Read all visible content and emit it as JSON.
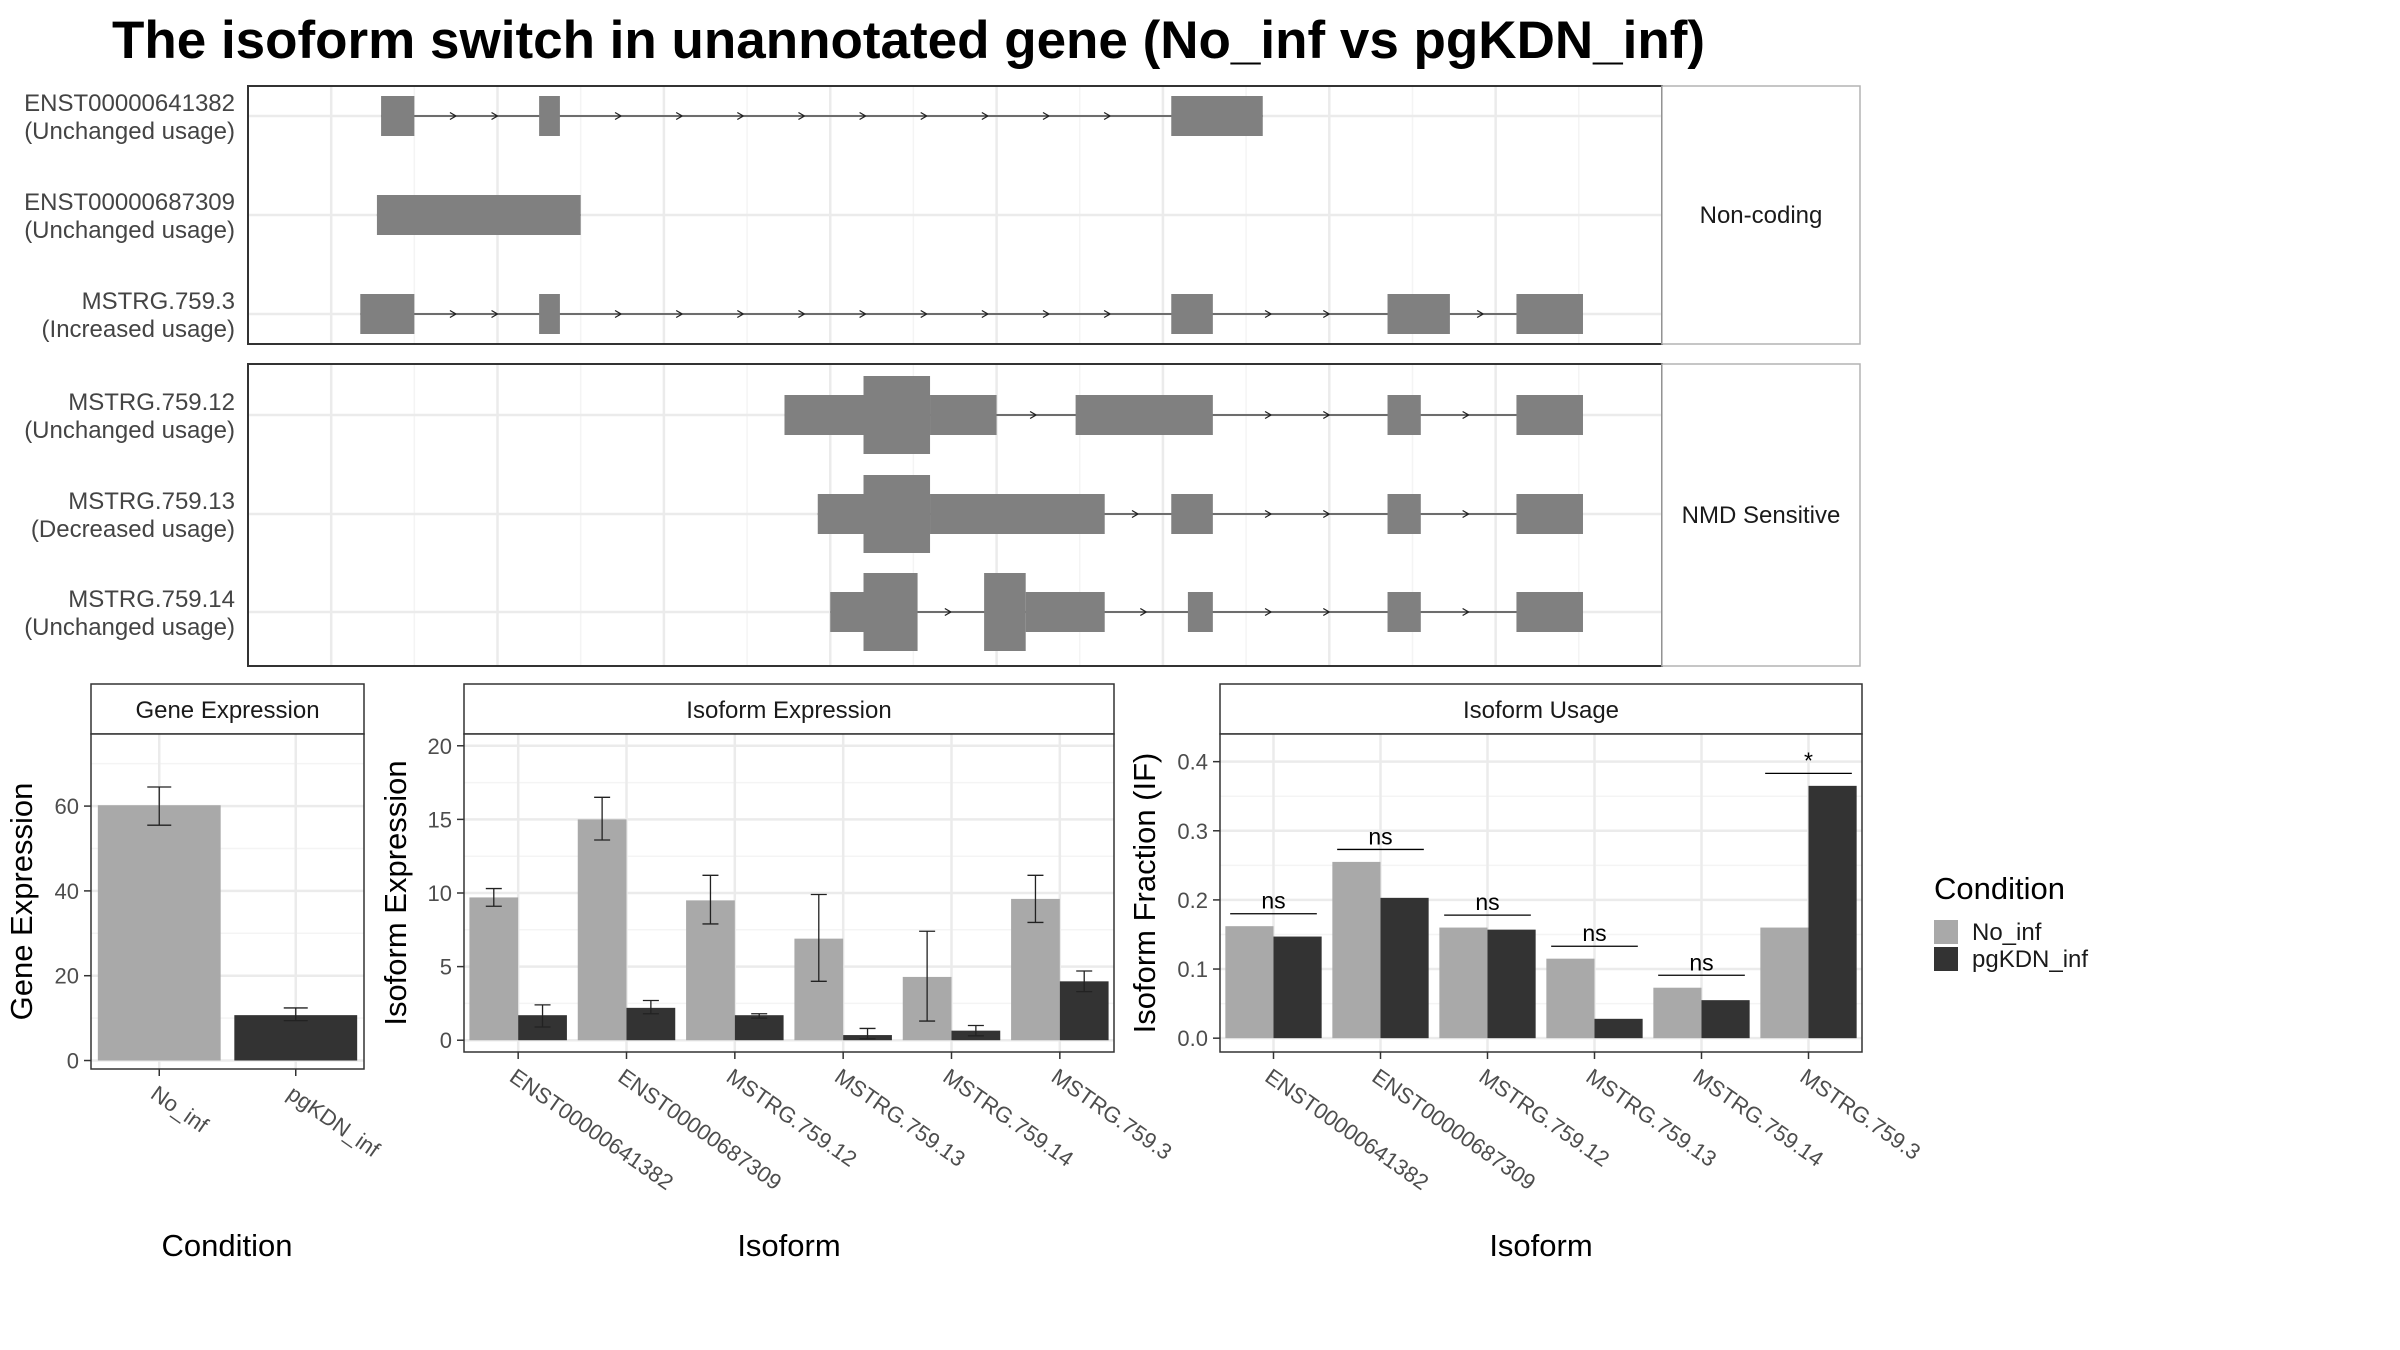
{
  "title": "The isoform switch in unannotated gene (No_inf vs pgKDN_inf)",
  "colors": {
    "no_inf": "#a9a9a9",
    "pgkdn_inf": "#333333",
    "exon": "#808080",
    "grid": "#ebebeb"
  },
  "structure": {
    "groups": [
      {
        "label": "Non-coding",
        "transcripts": [
          {
            "name": "ENST00000641382",
            "usage": "(Unchanged usage)",
            "cds": [],
            "utr": [
              [
                1.6,
                2.0
              ],
              [
                3.5,
                3.75
              ],
              [
                11.1,
                12.2
              ]
            ]
          },
          {
            "name": "ENST00000687309",
            "usage": "(Unchanged usage)",
            "cds": [],
            "utr": [
              [
                1.55,
                4.0
              ]
            ]
          },
          {
            "name": "MSTRG.759.3",
            "usage": "(Increased usage)",
            "cds": [],
            "utr": [
              [
                1.35,
                2.0
              ],
              [
                3.5,
                3.75
              ],
              [
                11.1,
                11.6
              ],
              [
                13.7,
                14.45
              ],
              [
                15.25,
                16.05
              ]
            ]
          }
        ]
      },
      {
        "label": "NMD Sensitive",
        "transcripts": [
          {
            "name": "MSTRG.759.12",
            "usage": "(Unchanged usage)",
            "cds": [
              [
                7.4,
                8.2
              ]
            ],
            "utr": [
              [
                6.45,
                7.4
              ],
              [
                8.2,
                9.0
              ],
              [
                9.95,
                11.6
              ],
              [
                13.7,
                14.1
              ],
              [
                15.25,
                16.05
              ]
            ]
          },
          {
            "name": "MSTRG.759.13",
            "usage": "(Decreased usage)",
            "cds": [
              [
                7.4,
                8.2
              ]
            ],
            "utr": [
              [
                6.85,
                7.4
              ],
              [
                8.2,
                10.3
              ],
              [
                11.1,
                11.6
              ],
              [
                13.7,
                14.1
              ],
              [
                15.25,
                16.05
              ]
            ]
          },
          {
            "name": "MSTRG.759.14",
            "usage": "(Unchanged usage)",
            "cds": [
              [
                7.4,
                8.05
              ],
              [
                8.85,
                9.35
              ]
            ],
            "utr": [
              [
                7.0,
                7.4
              ],
              [
                9.35,
                10.3
              ],
              [
                11.3,
                11.6
              ],
              [
                13.7,
                14.1
              ],
              [
                15.25,
                16.05
              ]
            ]
          }
        ]
      }
    ]
  },
  "chart_data": [
    {
      "type": "bar",
      "title": "Gene Expression",
      "xlabel": "Condition",
      "ylabel": "Gene Expression",
      "categories": [
        "No_inf",
        "pgKDN_inf"
      ],
      "values": [
        60.2,
        10.7
      ],
      "error": [
        [
          55.5,
          64.5
        ],
        [
          9.4,
          12.4
        ]
      ],
      "ylim": [
        -2,
        77
      ],
      "yticks": [
        0,
        20,
        40,
        60
      ]
    },
    {
      "type": "bar",
      "title": "Isoform Expression",
      "xlabel": "Isoform",
      "ylabel": "Isoform Expression",
      "categories": [
        "ENST00000641382",
        "ENST00000687309",
        "MSTRG.759.12",
        "MSTRG.759.13",
        "MSTRG.759.14",
        "MSTRG.759.3"
      ],
      "series": [
        {
          "name": "No_inf",
          "values": [
            9.7,
            15.0,
            9.5,
            6.9,
            4.3,
            9.6
          ],
          "error": [
            [
              9.1,
              10.3
            ],
            [
              13.6,
              16.5
            ],
            [
              7.9,
              11.2
            ],
            [
              4.0,
              9.9
            ],
            [
              1.3,
              7.4
            ],
            [
              8.0,
              11.2
            ]
          ]
        },
        {
          "name": "pgKDN_inf",
          "values": [
            1.7,
            2.2,
            1.7,
            0.35,
            0.65,
            4.0
          ],
          "error": [
            [
              0.9,
              2.4
            ],
            [
              1.8,
              2.7
            ],
            [
              1.5,
              1.8
            ],
            [
              0.1,
              0.8
            ],
            [
              0.3,
              1.0
            ],
            [
              3.3,
              4.7
            ]
          ]
        }
      ],
      "ylim": [
        -0.8,
        20.8
      ],
      "yticks": [
        0,
        5,
        10,
        15,
        20
      ]
    },
    {
      "type": "bar",
      "title": "Isoform Usage",
      "xlabel": "Isoform",
      "ylabel": "Isoform Fraction (IF)",
      "categories": [
        "ENST00000641382",
        "ENST00000687309",
        "MSTRG.759.12",
        "MSTRG.759.13",
        "MSTRG.759.14",
        "MSTRG.759.3"
      ],
      "series": [
        {
          "name": "No_inf",
          "values": [
            0.162,
            0.255,
            0.16,
            0.115,
            0.073,
            0.16
          ]
        },
        {
          "name": "pgKDN_inf",
          "values": [
            0.147,
            0.203,
            0.157,
            0.028,
            0.055,
            0.365
          ]
        }
      ],
      "significance": [
        "ns",
        "ns",
        "ns",
        "ns",
        "ns",
        "*"
      ],
      "ylim": [
        -0.02,
        0.44
      ],
      "yticks": [
        0.0,
        0.1,
        0.2,
        0.3,
        0.4
      ],
      "legend": {
        "title": "Condition",
        "entries": [
          "No_inf",
          "pgKDN_inf"
        ],
        "placement": "right"
      }
    }
  ]
}
